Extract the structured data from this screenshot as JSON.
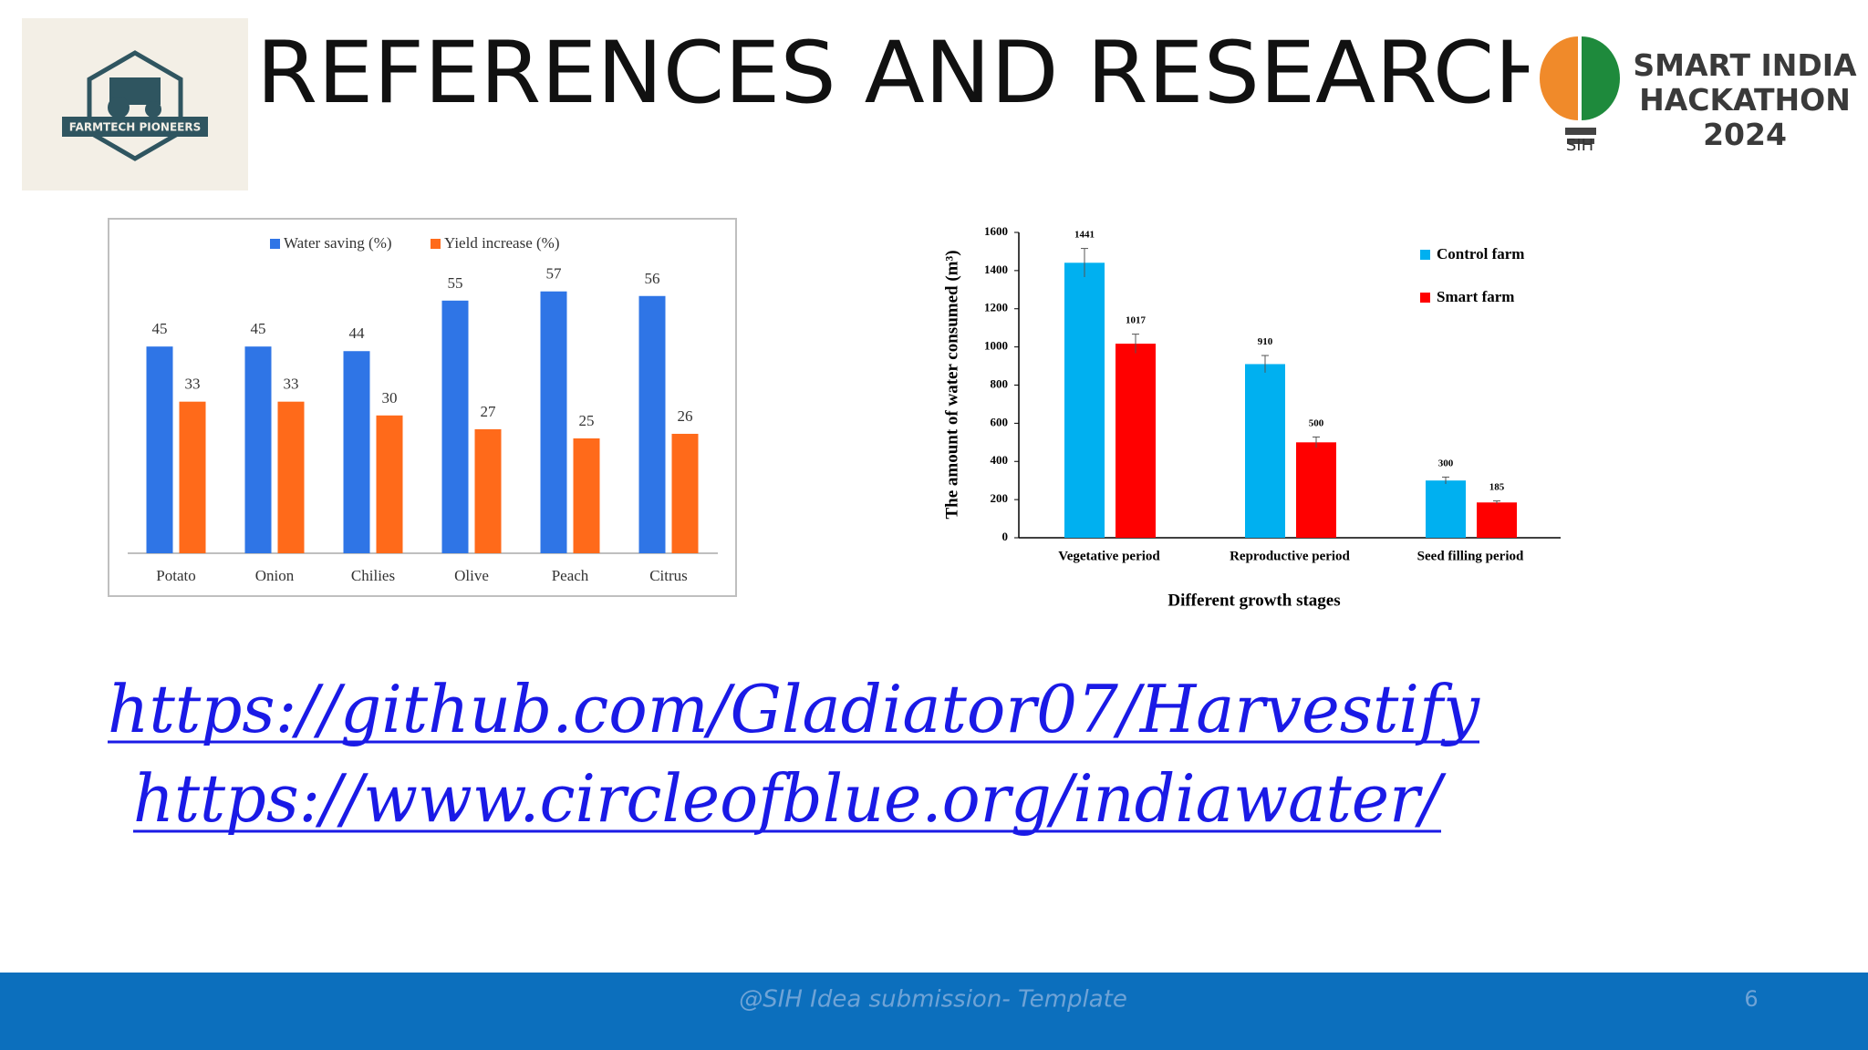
{
  "logo": {
    "text": "FARMTECH PIONEERS"
  },
  "header": {
    "title": "REFERENCES AND RESEARCH",
    "badge": {
      "lines": [
        "SMART INDIA",
        "HACKATHON",
        "2024"
      ],
      "icon_text": "SIH"
    }
  },
  "chart_data": [
    {
      "type": "bar",
      "categories": [
        "Potato",
        "Onion",
        "Chilies",
        "Olive",
        "Peach",
        "Citrus"
      ],
      "series": [
        {
          "name": "Water saving (%)",
          "color": "#2f75e6",
          "values": [
            45,
            45,
            44,
            55,
            57,
            56
          ]
        },
        {
          "name": "Yield increase (%)",
          "color": "#ff6a1a",
          "values": [
            33,
            33,
            30,
            27,
            25,
            26
          ]
        }
      ],
      "legend": "top"
    },
    {
      "type": "bar",
      "y_label": "The amount of water consumed (m³)",
      "x_label": "Different growth stages",
      "categories": [
        "Vegetative period",
        "Reproductive period",
        "Seed filling period"
      ],
      "series": [
        {
          "name": "Control farm",
          "color": "#00b0f0",
          "values": [
            1441,
            910,
            300
          ],
          "errors": [
            75,
            45,
            18
          ]
        },
        {
          "name": "Smart farm",
          "color": "#ff0000",
          "values": [
            1017,
            500,
            185
          ],
          "errors": [
            50,
            28,
            8
          ]
        }
      ],
      "ylim": [
        0,
        1600
      ],
      "yticks": [
        0,
        200,
        400,
        600,
        800,
        1000,
        1200,
        1400,
        1600
      ],
      "legend": "top-right"
    }
  ],
  "links": [
    "https://github.com/Gladiator07/Harvestify",
    "https://www.circleofblue.org/indiawater/"
  ],
  "footer": {
    "text": "@SIH Idea submission- Template",
    "page": "6"
  }
}
